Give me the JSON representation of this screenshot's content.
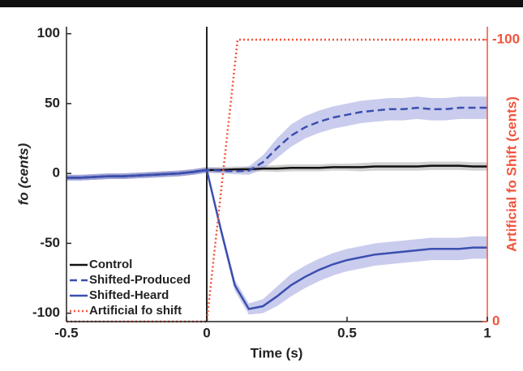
{
  "chart_data": {
    "type": "line",
    "xlabel": "Time (s)",
    "ylabel": "fo (cents)",
    "y2label": "Artificial fo Shift (cents)",
    "xlim": [
      -0.5,
      1
    ],
    "xticks": [
      -0.5,
      0,
      0.5,
      1
    ],
    "ylim": [
      -106,
      105
    ],
    "yticks": [
      -100,
      -50,
      0,
      50,
      100
    ],
    "y2lim": [
      0,
      -104.6
    ],
    "y2ticks": [
      0,
      -100
    ],
    "vline": 0,
    "legend": "lower left",
    "series": [
      {
        "name": "Control",
        "color": "#111111",
        "band_color": "#999999",
        "dash": "solid",
        "x": [
          -0.5,
          -0.45,
          -0.4,
          -0.35,
          -0.3,
          -0.25,
          -0.2,
          -0.15,
          -0.1,
          -0.05,
          0,
          0.05,
          0.1,
          0.15,
          0.2,
          0.25,
          0.3,
          0.35,
          0.4,
          0.45,
          0.5,
          0.55,
          0.6,
          0.65,
          0.7,
          0.75,
          0.8,
          0.85,
          0.9,
          0.95,
          1
        ],
        "values": [
          -3,
          -3,
          -2.5,
          -2,
          -2,
          -1.5,
          -1,
          -0.5,
          0,
          1,
          2.5,
          2.5,
          3,
          3,
          3.5,
          3.5,
          4,
          4,
          4,
          4.5,
          4.5,
          4.5,
          5,
          5,
          5,
          5,
          5.5,
          5.5,
          5.5,
          5,
          5
        ],
        "error": [
          2,
          2,
          2,
          2,
          2,
          2,
          2,
          2,
          2,
          2,
          2,
          2,
          2,
          2,
          2,
          2.5,
          2.5,
          2.5,
          2.5,
          2.5,
          2.5,
          3,
          3,
          3,
          3,
          3,
          3,
          3,
          3,
          3,
          3
        ]
      },
      {
        "name": "Shifted-Produced",
        "color": "#3a4fb0",
        "band_color": "#8a8fd6",
        "dash": "dashed",
        "x": [
          -0.5,
          -0.45,
          -0.4,
          -0.35,
          -0.3,
          -0.25,
          -0.2,
          -0.15,
          -0.1,
          -0.05,
          0,
          0.05,
          0.1,
          0.15,
          0.2,
          0.25,
          0.3,
          0.35,
          0.4,
          0.45,
          0.5,
          0.55,
          0.6,
          0.65,
          0.7,
          0.75,
          0.8,
          0.85,
          0.9,
          0.95,
          1
        ],
        "values": [
          -3,
          -3,
          -2.5,
          -2,
          -2,
          -1.5,
          -1,
          -0.5,
          0,
          1,
          2.5,
          2,
          1.5,
          2,
          8,
          18,
          27,
          33,
          37,
          40,
          42,
          44,
          45,
          46,
          46,
          47,
          46,
          46,
          47,
          47,
          47
        ],
        "error": [
          2,
          2,
          2,
          2,
          2,
          2,
          2,
          2,
          2,
          2,
          2,
          2,
          2,
          3,
          5,
          7,
          8,
          8,
          8,
          8,
          8,
          8,
          8,
          8,
          8,
          8,
          8,
          8,
          8,
          8,
          8
        ]
      },
      {
        "name": "Shifted-Heard",
        "color": "#3a4fb0",
        "band_color": "#8a8fd6",
        "dash": "solid",
        "x": [
          -0.5,
          -0.45,
          -0.4,
          -0.35,
          -0.3,
          -0.25,
          -0.2,
          -0.15,
          -0.1,
          -0.05,
          0,
          0.05,
          0.1,
          0.15,
          0.2,
          0.25,
          0.3,
          0.35,
          0.4,
          0.45,
          0.5,
          0.55,
          0.6,
          0.65,
          0.7,
          0.75,
          0.8,
          0.85,
          0.9,
          0.95,
          1
        ],
        "values": [
          -3,
          -3,
          -2.5,
          -2,
          -2,
          -1.5,
          -1,
          -0.5,
          0,
          1,
          2.5,
          -40,
          -80,
          -97,
          -95,
          -88,
          -80,
          -74,
          -69,
          -65,
          -62,
          -60,
          -58,
          -57,
          -56,
          -55,
          -54,
          -54,
          -54,
          -53,
          -53
        ],
        "error": [
          2,
          2,
          2,
          2,
          2,
          2,
          2,
          2,
          2,
          2,
          2,
          3,
          4,
          4,
          5,
          7,
          8,
          8,
          8,
          8,
          8,
          8,
          8,
          8,
          8,
          8,
          8,
          8,
          8,
          8,
          8
        ]
      },
      {
        "name": "Artificial fo shift",
        "color": "#f0543c",
        "dash": "dotted",
        "axis": "y2",
        "x": [
          -0.5,
          0,
          0.11,
          1
        ],
        "values": [
          0,
          0,
          -100,
          -100
        ]
      }
    ]
  }
}
